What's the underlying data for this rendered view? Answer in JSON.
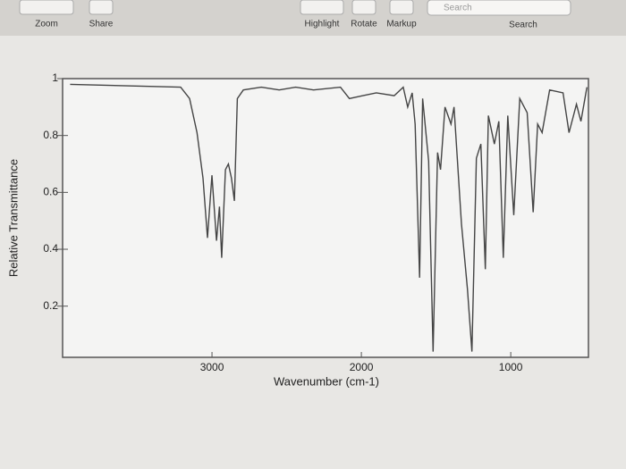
{
  "toolbar": {
    "zoom": "Zoom",
    "share": "Share",
    "highlight": "Highlight",
    "rotate": "Rotate",
    "markup": "Markup",
    "search_placeholder": "Search",
    "search": "Search"
  },
  "chart_data": {
    "type": "line",
    "x_label": "Wavenumber (cm-1)",
    "y_label": "Relative Transmittance",
    "x": [
      3950,
      3210,
      3150,
      3100,
      3060,
      3030,
      3000,
      2970,
      2950,
      2935,
      2910,
      2890,
      2870,
      2850,
      2830,
      2790,
      2670,
      2550,
      2440,
      2320,
      2140,
      2080,
      1990,
      1900,
      1780,
      1720,
      1690,
      1660,
      1640,
      1610,
      1590,
      1550,
      1520,
      1490,
      1470,
      1440,
      1400,
      1380,
      1330,
      1290,
      1260,
      1230,
      1200,
      1170,
      1150,
      1110,
      1080,
      1050,
      1020,
      980,
      940,
      890,
      850,
      820,
      790,
      740,
      650,
      610,
      560,
      530,
      490
    ],
    "values": [
      0.98,
      0.97,
      0.93,
      0.81,
      0.65,
      0.44,
      0.66,
      0.43,
      0.55,
      0.37,
      0.68,
      0.7,
      0.65,
      0.57,
      0.93,
      0.96,
      0.97,
      0.96,
      0.97,
      0.96,
      0.97,
      0.93,
      0.94,
      0.95,
      0.94,
      0.97,
      0.9,
      0.95,
      0.84,
      0.3,
      0.93,
      0.71,
      0.04,
      0.74,
      0.68,
      0.9,
      0.84,
      0.9,
      0.49,
      0.26,
      0.04,
      0.72,
      0.77,
      0.33,
      0.87,
      0.77,
      0.85,
      0.37,
      0.87,
      0.52,
      0.93,
      0.88,
      0.53,
      0.84,
      0.81,
      0.96,
      0.95,
      0.81,
      0.91,
      0.85,
      0.97
    ],
    "color": "#444444",
    "xlim": [
      4000,
      480
    ],
    "xticks": [
      3000,
      2000,
      1000
    ],
    "ylim": [
      0.02,
      1
    ],
    "yticks": [
      0.2,
      0.4,
      0.6,
      0.8,
      1
    ]
  }
}
